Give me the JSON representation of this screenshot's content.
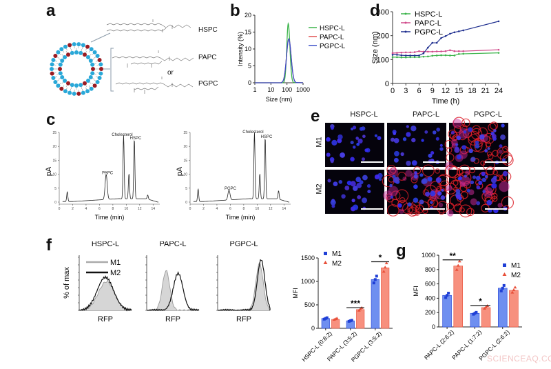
{
  "panels": {
    "a": {
      "label": "a",
      "molecules": [
        "HSPC",
        "PAPC",
        "PGPC"
      ],
      "or_text": "or"
    },
    "b": {
      "label": "b"
    },
    "c": {
      "label": "c"
    },
    "d": {
      "label": "d"
    },
    "e": {
      "label": "e",
      "columns": [
        "HSPC-L",
        "PAPC-L",
        "PGPC-L"
      ],
      "rows": [
        "M1",
        "M2"
      ]
    },
    "f": {
      "label": "f",
      "histograms": [
        "HSPC-L",
        "PAPC-L",
        "PGPC-L"
      ],
      "ylabel": "% of max",
      "xlabel": "RFP",
      "legend": [
        "M1",
        "M2"
      ]
    },
    "g": {
      "label": "g"
    }
  },
  "colors": {
    "green": "#3cb44b",
    "magenta": "#d04a8a",
    "navy": "#1f2f8f",
    "m1_bar": "#6f8ff0",
    "m1_dot": "#1f3fd6",
    "m2_bar": "#f7907e",
    "m2_dot": "#e8503a",
    "lipid_blue": "#2aa8d8",
    "lipid_red": "#9a1b22"
  },
  "watermark": "SCIENCEAQ.COM",
  "chart_data": [
    {
      "id": "b",
      "type": "line",
      "title": "",
      "xlabel": "Size (nm)",
      "ylabel": "Intensity (%)",
      "xscale": "log",
      "xticks": [
        "1",
        "10",
        "100",
        "1000"
      ],
      "yticks": [
        0,
        5,
        10,
        15,
        20
      ],
      "ylim": [
        0,
        20
      ],
      "legend": [
        "HSPC-L",
        "PAPC-L",
        "PGPC-L"
      ],
      "series": [
        {
          "name": "HSPC-L",
          "peak_x_nm": 120,
          "peak_y": 17.5,
          "range_nm": [
            60,
            260
          ]
        },
        {
          "name": "PAPC-L",
          "peak_x_nm": 130,
          "peak_y": 13,
          "range_nm": [
            45,
            380
          ]
        },
        {
          "name": "PGPC-L",
          "peak_x_nm": 130,
          "peak_y": 13,
          "range_nm": [
            45,
            380
          ]
        }
      ]
    },
    {
      "id": "c",
      "type": "line",
      "title": "",
      "xlabel": "Time (min)",
      "ylabel": "pA",
      "xticks": [
        0,
        2,
        4,
        6,
        8,
        10,
        12,
        14
      ],
      "yticks": [
        0,
        5,
        10,
        15,
        20,
        25
      ],
      "ylim": [
        0,
        25
      ],
      "subplots": [
        {
          "peaks": [
            {
              "label": "",
              "x": 1.2,
              "y": 3.5
            },
            {
              "label": "PAPC",
              "x": 7.0,
              "y": 9
            },
            {
              "label": "Cholesterol",
              "x": 9.6,
              "y": 22.8
            },
            {
              "label": "",
              "x": 10.4,
              "y": 9
            },
            {
              "label": "HSPC",
              "x": 11.2,
              "y": 21.5
            },
            {
              "label": "",
              "x": 13.2,
              "y": 1.5
            }
          ]
        },
        {
          "peaks": [
            {
              "label": "",
              "x": 1.2,
              "y": 4.5
            },
            {
              "label": "PGPC",
              "x": 5.8,
              "y": 3.5
            },
            {
              "label": "Cholesterol",
              "x": 9.6,
              "y": 23.8
            },
            {
              "label": "",
              "x": 10.4,
              "y": 9
            },
            {
              "label": "HSPC",
              "x": 11.2,
              "y": 22
            },
            {
              "label": "",
              "x": 13.2,
              "y": 3
            }
          ]
        }
      ]
    },
    {
      "id": "d",
      "type": "line",
      "title": "",
      "xlabel": "Time (h)",
      "ylabel": "Size (nm)",
      "xticks": [
        0,
        3,
        6,
        9,
        12,
        15,
        18,
        21,
        24
      ],
      "yticks": [
        0,
        100,
        200,
        300
      ],
      "ylim": [
        0,
        300
      ],
      "legend": [
        "HSPC-L",
        "PAPC-L",
        "PGPC-L"
      ],
      "x": [
        0,
        1,
        2,
        3,
        4,
        5,
        6,
        7,
        8,
        9,
        10,
        11,
        12,
        13,
        14,
        15,
        16,
        24
      ],
      "series": [
        {
          "name": "HSPC-L",
          "values": [
            110,
            110,
            109,
            109,
            110,
            110,
            110,
            112,
            113,
            116,
            117,
            118,
            118,
            117,
            117,
            123,
            124,
            128
          ]
        },
        {
          "name": "PAPC-L",
          "values": [
            127,
            128,
            129,
            130,
            130,
            131,
            135,
            133,
            133,
            133,
            134,
            134,
            135,
            139,
            135,
            135,
            135,
            141
          ]
        },
        {
          "name": "PGPC-L",
          "values": [
            120,
            120,
            118,
            117,
            117,
            117,
            117,
            126,
            150,
            170,
            170,
            190,
            198,
            208,
            214,
            218,
            222,
            260
          ]
        }
      ]
    },
    {
      "id": "f-bar",
      "type": "bar",
      "title": "",
      "xlabel": "",
      "ylabel": "MFI",
      "categories": [
        "HSPC-L (0:8:2)",
        "PAPC-L (3:5:2)",
        "PGPC-L (3:5:2)"
      ],
      "yticks": [
        0,
        500,
        1000,
        1500
      ],
      "ylim": [
        0,
        1500
      ],
      "legend": [
        "M1",
        "M2"
      ],
      "series": [
        {
          "name": "M1",
          "values": [
            210,
            160,
            1040
          ]
        },
        {
          "name": "M2",
          "values": [
            190,
            400,
            1290
          ]
        }
      ],
      "significance": [
        "",
        "***",
        "*"
      ]
    },
    {
      "id": "g",
      "type": "bar",
      "title": "",
      "xlabel": "",
      "ylabel": "MFI",
      "categories": [
        "PAPC-L (2:6:2)",
        "PAPC-L (1:7:2)",
        "PGPC-L (2:6:2)"
      ],
      "yticks": [
        0,
        200,
        400,
        600,
        800,
        1000
      ],
      "ylim": [
        0,
        1000
      ],
      "legend": [
        "M1",
        "M2"
      ],
      "series": [
        {
          "name": "M1",
          "values": [
            440,
            190,
            540
          ]
        },
        {
          "name": "M2",
          "values": [
            850,
            270,
            510
          ]
        }
      ],
      "significance": [
        "**",
        "*",
        ""
      ]
    }
  ]
}
